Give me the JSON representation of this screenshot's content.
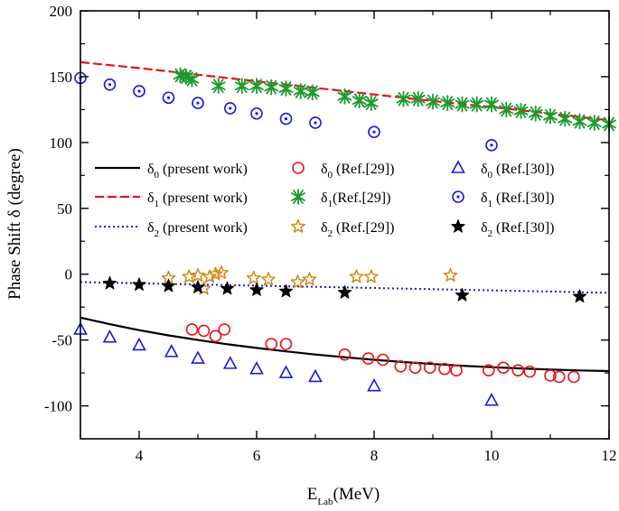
{
  "chart_data": {
    "type": "scatter",
    "xlabel": "E",
    "xlabel_sub": "Lab",
    "xlabel_unit": "(MeV)",
    "ylabel": "Phase Shift δ (degree)",
    "xlim": [
      3,
      12
    ],
    "ylim": [
      -125,
      200
    ],
    "xticks": [
      4,
      6,
      8,
      10,
      12
    ],
    "yticks": [
      -100,
      -50,
      0,
      50,
      100,
      150,
      200
    ],
    "grid": false,
    "legend_placement": "center",
    "colors": {
      "black": "#000000",
      "red": "#e8141b",
      "green": "#1d9a2c",
      "blue": "#1a1adc",
      "orange": "#d18a1c"
    },
    "series": [
      {
        "id": "d0-present",
        "label_main": "δ",
        "label_sub": "0",
        "label_rest": " (present work)",
        "kind": "line",
        "dash": "solid",
        "color": "#000000",
        "x": [
          3,
          3.5,
          4,
          4.5,
          5,
          5.5,
          6,
          6.5,
          7,
          7.5,
          8,
          8.5,
          9,
          9.5,
          10,
          10.5,
          11,
          11.5,
          12
        ],
        "y": [
          -33,
          -38,
          -42.5,
          -46.5,
          -50,
          -53.2,
          -56,
          -58.6,
          -61,
          -63.1,
          -65,
          -66.7,
          -68.2,
          -69.5,
          -70.6,
          -71.6,
          -72.4,
          -73.1,
          -73.6
        ]
      },
      {
        "id": "d1-present",
        "label_main": "δ",
        "label_sub": "1",
        "label_rest": " (present work)",
        "kind": "line",
        "dash": "dashed",
        "color": "#e8141b",
        "x": [
          3,
          4,
          5,
          6,
          7,
          8,
          9,
          10,
          11,
          12
        ],
        "y": [
          161,
          156.5,
          151.5,
          146.5,
          141.5,
          136.5,
          131.5,
          127,
          122,
          117
        ]
      },
      {
        "id": "d2-present",
        "label_main": "δ",
        "label_sub": "2",
        "label_rest": " (present work)",
        "kind": "line",
        "dash": "dotted",
        "color": "#1a1adc",
        "x": [
          3,
          4,
          5,
          6,
          7,
          8,
          9,
          10,
          11,
          12
        ],
        "y": [
          -6,
          -6.9,
          -7.8,
          -8.7,
          -9.6,
          -10.5,
          -11.4,
          -12.3,
          -13.2,
          -14.2
        ]
      },
      {
        "id": "d0-ref29",
        "label_main": "δ",
        "label_sub": "0",
        "label_rest": " (Ref.[29])",
        "kind": "marker",
        "marker": "circle",
        "color": "#e8141b",
        "x": [
          4.9,
          5.1,
          5.3,
          5.45,
          6.25,
          6.5,
          7.5,
          7.9,
          8.15,
          8.45,
          8.7,
          8.95,
          9.2,
          9.4,
          9.95,
          10.2,
          10.45,
          10.65,
          11,
          11.15,
          11.4
        ],
        "y": [
          -42,
          -43,
          -47,
          -42,
          -53,
          -53,
          -61,
          -64,
          -65,
          -70,
          -71,
          -71,
          -72,
          -73,
          -73,
          -71,
          -73,
          -74,
          -77,
          -78,
          -78
        ]
      },
      {
        "id": "d1-ref29",
        "label_main": "δ",
        "label_sub": "1",
        "label_rest": "(Ref.[29])",
        "kind": "marker",
        "marker": "asterisk",
        "color": "#1d9a2c",
        "x": [
          4.7,
          4.8,
          4.9,
          5.35,
          5.75,
          6,
          6.25,
          6.5,
          6.75,
          6.95,
          7.5,
          7.75,
          7.95,
          8.5,
          8.75,
          9,
          9.25,
          9.5,
          9.75,
          10,
          10.25,
          10.5,
          10.75,
          11,
          11.25,
          11.5,
          11.75,
          12
        ],
        "y": [
          151,
          150,
          148,
          143,
          143,
          143,
          142,
          141,
          139,
          138,
          135,
          132,
          130,
          133,
          133,
          131,
          130,
          129,
          129,
          129,
          125,
          124,
          122,
          120,
          118,
          116,
          115,
          114
        ]
      },
      {
        "id": "d2-ref29",
        "label_main": "δ",
        "label_sub": "2",
        "label_rest": " (Ref.[29])",
        "kind": "marker",
        "marker": "star",
        "color": "#d18a1c",
        "x": [
          4.5,
          4.85,
          5,
          5.1,
          5.2,
          5.3,
          5.4,
          5.95,
          6.2,
          6.7,
          6.9,
          7.7,
          7.95,
          9.3
        ],
        "y": [
          -3,
          -2,
          -1,
          -11,
          -2,
          0,
          1,
          -3,
          -4,
          -6,
          -4,
          -2,
          -2,
          -1
        ]
      },
      {
        "id": "d0-ref30",
        "label_main": "δ",
        "label_sub": "0",
        "label_rest": " (Ref.[30])",
        "kind": "marker",
        "marker": "triangle",
        "color": "#1a1adc",
        "x": [
          3,
          3.5,
          4,
          4.55,
          5,
          5.55,
          6,
          6.5,
          7,
          8,
          10
        ],
        "y": [
          -42,
          -48,
          -54,
          -59,
          -64,
          -68,
          -72,
          -75,
          -78,
          -85,
          -96
        ]
      },
      {
        "id": "d1-ref30",
        "label_main": "δ",
        "label_sub": "1",
        "label_rest": " (Ref.[30])",
        "kind": "marker",
        "marker": "dotcircle",
        "color": "#1a1adc",
        "x": [
          3,
          3.5,
          4,
          4.5,
          5,
          5.55,
          6,
          6.5,
          7,
          8,
          10
        ],
        "y": [
          149,
          144,
          139,
          134,
          130,
          126,
          122,
          118,
          115,
          108,
          98
        ]
      },
      {
        "id": "d2-ref30",
        "label_main": "δ",
        "label_sub": "2",
        "label_rest": " (Ref.[30])",
        "kind": "marker",
        "marker": "star",
        "color": "#000000",
        "x": [
          3.5,
          4,
          4.5,
          5,
          5.5,
          6,
          6.5,
          7.5,
          9.5,
          11.5
        ],
        "y": [
          -7,
          -8,
          -9,
          -10,
          -11,
          -12,
          -13,
          -14,
          -16,
          -17
        ]
      }
    ],
    "legend": [
      [
        "d0-present",
        "d0-ref29",
        "d0-ref30"
      ],
      [
        "d1-present",
        "d1-ref29",
        "d1-ref30"
      ],
      [
        "d2-present",
        "d2-ref29",
        "d2-ref30"
      ]
    ]
  }
}
